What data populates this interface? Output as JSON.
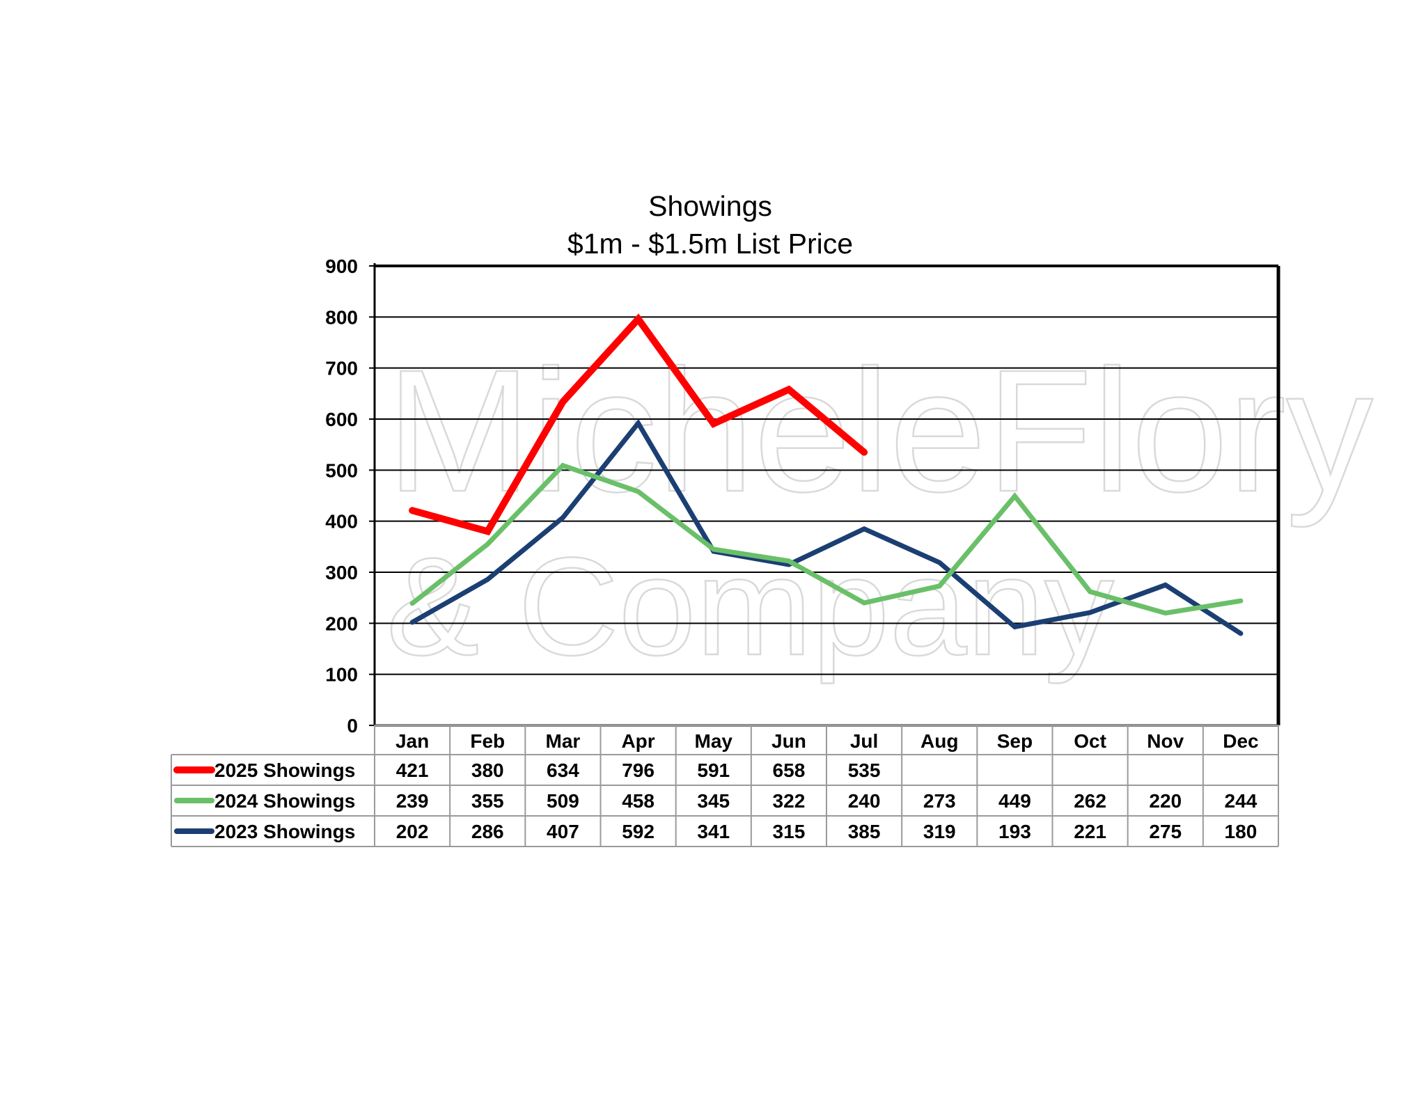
{
  "watermark": {
    "line1": "MicheleFlory",
    "line2": "& Company"
  },
  "chart_data": {
    "type": "line",
    "title": "Showings",
    "subtitle": "$1m - $1.5m List Price",
    "categories": [
      "Jan",
      "Feb",
      "Mar",
      "Apr",
      "May",
      "Jun",
      "Jul",
      "Aug",
      "Sep",
      "Oct",
      "Nov",
      "Dec"
    ],
    "ylim": [
      0,
      900
    ],
    "yticks": [
      0,
      100,
      200,
      300,
      400,
      500,
      600,
      700,
      800,
      900
    ],
    "grid": true,
    "legend": "data-table-left",
    "series": [
      {
        "name": "2025 Showings",
        "color": "#ff0000",
        "values": [
          421,
          380,
          634,
          796,
          591,
          658,
          535,
          null,
          null,
          null,
          null,
          null
        ]
      },
      {
        "name": "2024 Showings",
        "color": "#6abf69",
        "values": [
          239,
          355,
          509,
          458,
          345,
          322,
          240,
          273,
          449,
          262,
          220,
          244
        ]
      },
      {
        "name": "2023 Showings",
        "color": "#1b3f73",
        "values": [
          202,
          286,
          407,
          592,
          341,
          315,
          385,
          319,
          193,
          221,
          275,
          180
        ]
      }
    ]
  }
}
